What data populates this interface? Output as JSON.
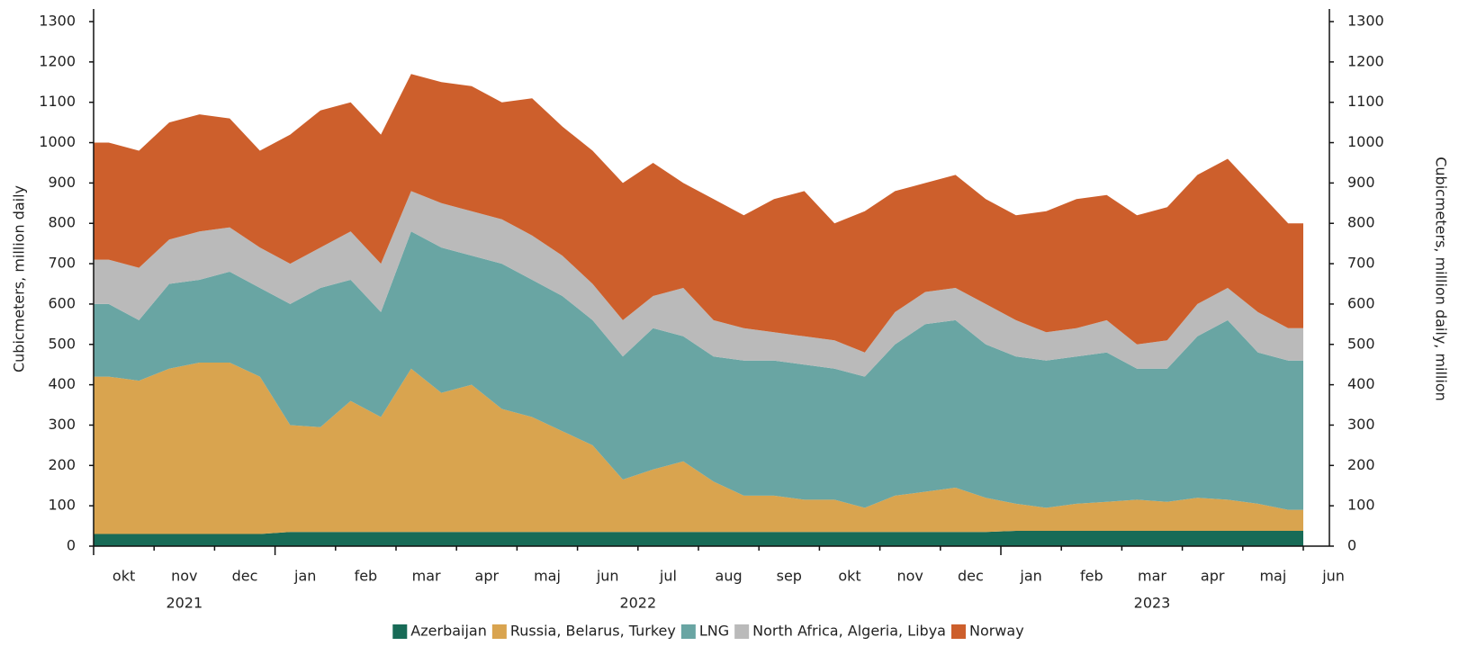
{
  "chart_data": {
    "type": "stacked_area",
    "y_label": "Cubicmeters, million daily",
    "y2_label": "Cubicmeters, million daily, million",
    "x": [
      "2021-10",
      "2021-10",
      "2021-11",
      "2021-11",
      "2021-12",
      "2021-12",
      "2022-01",
      "2022-01",
      "2022-02",
      "2022-02",
      "2022-03",
      "2022-03",
      "2022-04",
      "2022-04",
      "2022-05",
      "2022-05",
      "2022-06",
      "2022-06",
      "2022-07",
      "2022-07",
      "2022-08",
      "2022-08",
      "2022-09",
      "2022-09",
      "2022-10",
      "2022-10",
      "2022-11",
      "2022-11",
      "2022-12",
      "2022-12",
      "2023-01",
      "2023-01",
      "2023-02",
      "2023-02",
      "2023-03",
      "2023-03",
      "2023-04",
      "2023-04",
      "2023-05",
      "2023-05"
    ],
    "month_labels": [
      "okt",
      "nov",
      "dec",
      "jan",
      "feb",
      "mar",
      "apr",
      "maj",
      "jun",
      "jul",
      "aug",
      "sep",
      "okt",
      "nov",
      "dec",
      "jan",
      "feb",
      "mar",
      "apr",
      "maj",
      "jun"
    ],
    "year_labels": [
      "2021",
      "2022",
      "2023"
    ],
    "series": [
      {
        "name": "Azerbaijan",
        "color": "#186b57",
        "values": [
          30,
          30,
          30,
          30,
          30,
          30,
          35,
          35,
          35,
          35,
          35,
          35,
          35,
          35,
          35,
          35,
          35,
          35,
          35,
          35,
          35,
          35,
          35,
          35,
          35,
          35,
          35,
          35,
          35,
          35,
          38,
          38,
          38,
          38,
          38,
          38,
          38,
          38,
          38,
          38
        ]
      },
      {
        "name": "Russia, Belarus, Turkey",
        "color": "#d9a44f",
        "values": [
          390,
          380,
          410,
          425,
          425,
          390,
          265,
          260,
          325,
          285,
          405,
          345,
          365,
          305,
          285,
          250,
          215,
          130,
          155,
          175,
          125,
          90,
          90,
          80,
          80,
          60,
          90,
          100,
          110,
          85,
          67,
          57,
          67,
          72,
          77,
          72,
          82,
          77,
          67,
          52
        ]
      },
      {
        "name": "LNG",
        "color": "#69a5a3",
        "values": [
          180,
          150,
          210,
          205,
          225,
          220,
          300,
          345,
          300,
          260,
          340,
          360,
          320,
          360,
          340,
          335,
          310,
          305,
          350,
          310,
          310,
          335,
          335,
          335,
          325,
          325,
          375,
          415,
          415,
          380,
          365,
          365,
          365,
          370,
          325,
          330,
          400,
          445,
          375,
          370
        ]
      },
      {
        "name": "North Africa, Algeria, Libya",
        "color": "#bababa",
        "values": [
          110,
          130,
          110,
          120,
          110,
          100,
          100,
          100,
          120,
          120,
          100,
          110,
          110,
          110,
          110,
          100,
          90,
          90,
          80,
          120,
          90,
          80,
          70,
          70,
          70,
          60,
          80,
          80,
          80,
          100,
          90,
          70,
          70,
          80,
          60,
          70,
          80,
          80,
          100,
          80
        ]
      },
      {
        "name": "Norway",
        "color": "#cd5f2c",
        "values": [
          290,
          290,
          290,
          290,
          270,
          240,
          320,
          340,
          320,
          320,
          290,
          300,
          310,
          290,
          340,
          320,
          330,
          340,
          330,
          260,
          300,
          280,
          330,
          360,
          290,
          350,
          300,
          270,
          280,
          260,
          260,
          300,
          320,
          310,
          320,
          330,
          320,
          320,
          300,
          260
        ]
      }
    ],
    "ylim": [
      0,
      1300
    ],
    "yticks": [
      0,
      100,
      200,
      300,
      400,
      500,
      600,
      700,
      800,
      900,
      1000,
      1100,
      1200,
      1300
    ],
    "y2lim": [
      0,
      1300
    ],
    "y2ticks": [
      0,
      100,
      200,
      300,
      400,
      500,
      600,
      700,
      800,
      900,
      1000,
      1100,
      1200,
      1300
    ],
    "legend": "bottom"
  }
}
